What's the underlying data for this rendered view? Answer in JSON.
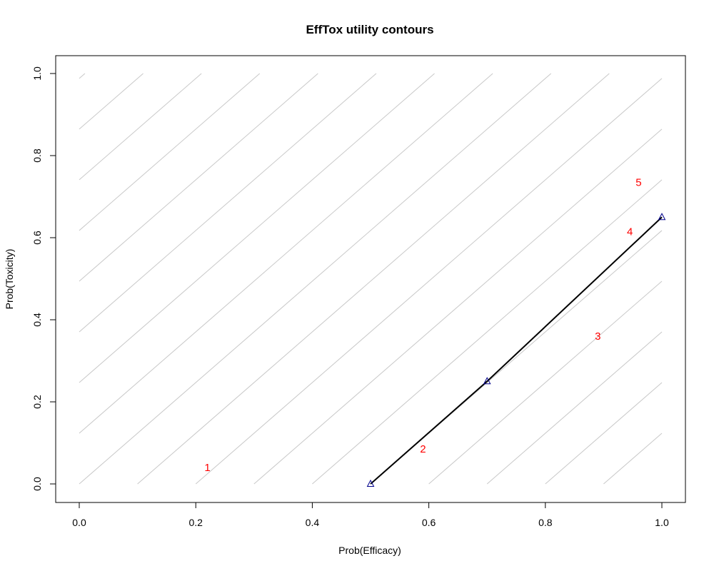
{
  "chart_data": {
    "type": "line",
    "title": "EffTox utility contours",
    "xlabel": "Prob(Efficacy)",
    "ylabel": "Prob(Toxicity)",
    "xlim": [
      -0.04,
      1.04
    ],
    "ylim": [
      -0.05,
      1.05
    ],
    "x_ticks": [
      "0.0",
      "0.2",
      "0.4",
      "0.6",
      "0.8",
      "1.0"
    ],
    "y_ticks": [
      "0.0",
      "0.2",
      "0.4",
      "0.6",
      "0.8",
      "1.0"
    ],
    "grid": false,
    "contour_color": "#c8c8c8",
    "contour_slope": 1.235,
    "contour_x_intercepts": [
      -0.8,
      -0.7,
      -0.6,
      -0.5,
      -0.4,
      -0.3,
      -0.2,
      -0.1,
      0.0,
      0.1,
      0.2,
      0.3,
      0.4,
      0.5,
      0.6,
      0.7,
      0.8,
      0.9
    ],
    "highlighted_contour": {
      "color": "#000000",
      "points": [
        {
          "x": 0.5,
          "y": 0.0
        },
        {
          "x": 0.7,
          "y": 0.25
        },
        {
          "x": 1.0,
          "y": 0.65
        }
      ]
    },
    "dose_labels": [
      {
        "label": "1",
        "x": 0.22,
        "y": 0.04
      },
      {
        "label": "2",
        "x": 0.59,
        "y": 0.085
      },
      {
        "label": "3",
        "x": 0.89,
        "y": 0.36
      },
      {
        "label": "4",
        "x": 0.945,
        "y": 0.615
      },
      {
        "label": "5",
        "x": 0.96,
        "y": 0.735
      }
    ],
    "dose_label_color": "#ff0000",
    "marker_color": "#00008b"
  }
}
